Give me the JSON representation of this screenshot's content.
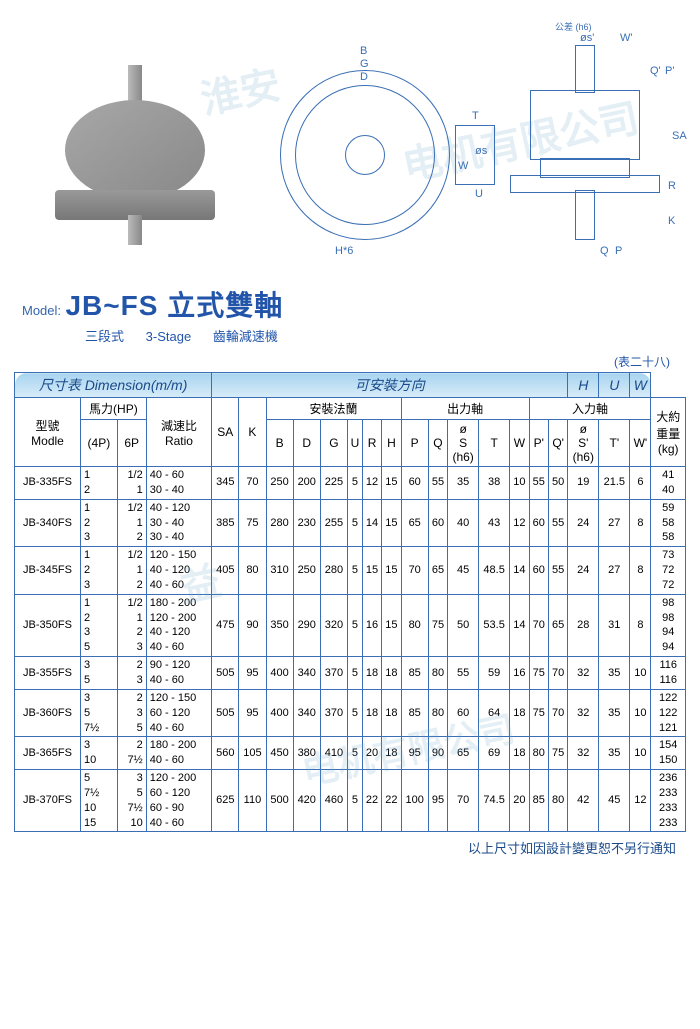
{
  "diagram": {
    "top_labels": [
      "B",
      "G",
      "D"
    ],
    "bottom_label": "H*6",
    "side_labels": [
      "T",
      "W",
      "U",
      "S"
    ],
    "right_labels": [
      "øs'",
      "W'",
      "Q'",
      "P'",
      "SA",
      "R",
      "K",
      "Q",
      "P"
    ],
    "tolerance": "公差 (h6)"
  },
  "model": {
    "prefix": "Model:",
    "name": "JB~FS 立式雙軸",
    "stage_cn": "三段式",
    "stage_en": "3-Stage",
    "type": "齒輪減速機"
  },
  "table_ref": "(表二十八)",
  "headers": {
    "dim_section": "尺寸表 Dimension(m/m)",
    "install_section": "可安裝方向",
    "h": "H",
    "u": "U",
    "w": "W",
    "model": "型號\nModle",
    "hp": "馬力(HP)",
    "hp4": "(4P)",
    "hp6": "6P",
    "ratio": "減速比\nRatio",
    "sa": "SA",
    "k": "K",
    "flange": "安裝法蘭",
    "out_shaft": "出力軸",
    "in_shaft": "入力軸",
    "weight": "大約\n重量\n(kg)",
    "cols": [
      "B",
      "D",
      "G",
      "U",
      "R",
      "H",
      "P",
      "Q",
      "ø\nS\n(h6)",
      "T",
      "W",
      "P'",
      "Q'",
      "ø\nS'\n(h6)",
      "T'",
      "W'"
    ]
  },
  "rows": [
    {
      "m": "JB-335FS",
      "hp4": "1\n2",
      "hp6": "1/2\n1",
      "ratio": "40 - 60\n30 - 40",
      "sa": "345",
      "k": "70",
      "b": "250",
      "d": "200",
      "g": "225",
      "u": "5",
      "r": "12",
      "h": "15",
      "p": "60",
      "q": "55",
      "s": "35",
      "t": "38",
      "w": "10",
      "pp": "55",
      "qp": "50",
      "sp": "19",
      "tp": "21.5",
      "wp": "6",
      "kg": "41\n40"
    },
    {
      "m": "JB-340FS",
      "hp4": "1\n2\n3",
      "hp6": "1/2\n1\n2",
      "ratio": "40 - 120\n30 - 40\n30 - 40",
      "sa": "385",
      "k": "75",
      "b": "280",
      "d": "230",
      "g": "255",
      "u": "5",
      "r": "14",
      "h": "15",
      "p": "65",
      "q": "60",
      "s": "40",
      "t": "43",
      "w": "12",
      "pp": "60",
      "qp": "55",
      "sp": "24",
      "tp": "27",
      "wp": "8",
      "kg": "59\n58\n58"
    },
    {
      "m": "JB-345FS",
      "hp4": "1\n2\n3",
      "hp6": "1/2\n1\n2",
      "ratio": "120 - 150\n40 - 120\n40 - 60",
      "sa": "405",
      "k": "80",
      "b": "310",
      "d": "250",
      "g": "280",
      "u": "5",
      "r": "15",
      "h": "15",
      "p": "70",
      "q": "65",
      "s": "45",
      "t": "48.5",
      "w": "14",
      "pp": "60",
      "qp": "55",
      "sp": "24",
      "tp": "27",
      "wp": "8",
      "kg": "73\n72\n72"
    },
    {
      "m": "JB-350FS",
      "hp4": "1\n2\n3\n5",
      "hp6": "1/2\n1\n2\n3",
      "ratio": "180 - 200\n120 - 200\n40 - 120\n40 - 60",
      "sa": "475",
      "k": "90",
      "b": "350",
      "d": "290",
      "g": "320",
      "u": "5",
      "r": "16",
      "h": "15",
      "p": "80",
      "q": "75",
      "s": "50",
      "t": "53.5",
      "w": "14",
      "pp": "70",
      "qp": "65",
      "sp": "28",
      "tp": "31",
      "wp": "8",
      "kg": "98\n98\n94\n94"
    },
    {
      "m": "JB-355FS",
      "hp4": "3\n5",
      "hp6": "2\n3",
      "ratio": "90 - 120\n40 - 60",
      "sa": "505",
      "k": "95",
      "b": "400",
      "d": "340",
      "g": "370",
      "u": "5",
      "r": "18",
      "h": "18",
      "p": "85",
      "q": "80",
      "s": "55",
      "t": "59",
      "w": "16",
      "pp": "75",
      "qp": "70",
      "sp": "32",
      "tp": "35",
      "wp": "10",
      "kg": "116\n116"
    },
    {
      "m": "JB-360FS",
      "hp4": "3\n5\n7½",
      "hp6": "2\n3\n5",
      "ratio": "120 - 150\n60 - 120\n40 - 60",
      "sa": "505",
      "k": "95",
      "b": "400",
      "d": "340",
      "g": "370",
      "u": "5",
      "r": "18",
      "h": "18",
      "p": "85",
      "q": "80",
      "s": "60",
      "t": "64",
      "w": "18",
      "pp": "75",
      "qp": "70",
      "sp": "32",
      "tp": "35",
      "wp": "10",
      "kg": "122\n122\n121"
    },
    {
      "m": "JB-365FS",
      "hp4": "3\n10",
      "hp6": "2\n7½",
      "ratio": "180 - 200\n40 - 60",
      "sa": "560",
      "k": "105",
      "b": "450",
      "d": "380",
      "g": "410",
      "u": "5",
      "r": "20",
      "h": "18",
      "p": "95",
      "q": "90",
      "s": "65",
      "t": "69",
      "w": "18",
      "pp": "80",
      "qp": "75",
      "sp": "32",
      "tp": "35",
      "wp": "10",
      "kg": "154\n150"
    },
    {
      "m": "JB-370FS",
      "hp4": "5\n7½\n10\n15",
      "hp6": "3\n5\n7½\n10",
      "ratio": "120 - 200\n60 - 120\n60 - 90\n40 - 60",
      "sa": "625",
      "k": "110",
      "b": "500",
      "d": "420",
      "g": "460",
      "u": "5",
      "r": "22",
      "h": "22",
      "p": "100",
      "q": "95",
      "s": "70",
      "t": "74.5",
      "w": "20",
      "pp": "85",
      "qp": "80",
      "sp": "42",
      "tp": "45",
      "wp": "12",
      "kg": "236\n233\n233\n233"
    }
  ],
  "footer": "以上尺寸如因設計變更恕不另行通知",
  "watermarks": [
    "淮安",
    "电机有限公司",
    "益"
  ],
  "colors": {
    "blue": "#3a6fb5",
    "hdr_blue": "#1a4a8a"
  }
}
